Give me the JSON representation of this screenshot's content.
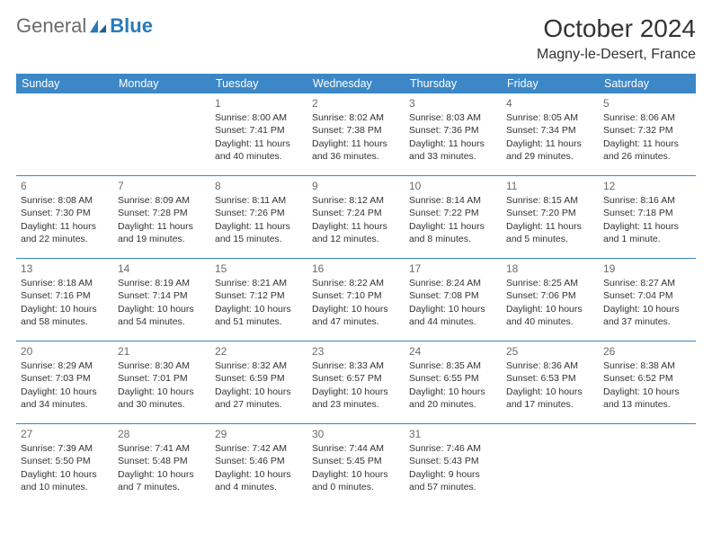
{
  "logo": {
    "text1": "General",
    "text2": "Blue"
  },
  "title": "October 2024",
  "location": "Magny-le-Desert, France",
  "colors": {
    "header_bg": "#3d87c7",
    "header_text": "#ffffff",
    "border": "#3d87c7",
    "daynum": "#6b6b6b",
    "body_text": "#333333",
    "logo_gray": "#6b6b6b",
    "logo_blue": "#2a7ab8"
  },
  "weekdays": [
    "Sunday",
    "Monday",
    "Tuesday",
    "Wednesday",
    "Thursday",
    "Friday",
    "Saturday"
  ],
  "weeks": [
    [
      null,
      null,
      {
        "n": "1",
        "sr": "Sunrise: 8:00 AM",
        "ss": "Sunset: 7:41 PM",
        "d1": "Daylight: 11 hours",
        "d2": "and 40 minutes."
      },
      {
        "n": "2",
        "sr": "Sunrise: 8:02 AM",
        "ss": "Sunset: 7:38 PM",
        "d1": "Daylight: 11 hours",
        "d2": "and 36 minutes."
      },
      {
        "n": "3",
        "sr": "Sunrise: 8:03 AM",
        "ss": "Sunset: 7:36 PM",
        "d1": "Daylight: 11 hours",
        "d2": "and 33 minutes."
      },
      {
        "n": "4",
        "sr": "Sunrise: 8:05 AM",
        "ss": "Sunset: 7:34 PM",
        "d1": "Daylight: 11 hours",
        "d2": "and 29 minutes."
      },
      {
        "n": "5",
        "sr": "Sunrise: 8:06 AM",
        "ss": "Sunset: 7:32 PM",
        "d1": "Daylight: 11 hours",
        "d2": "and 26 minutes."
      }
    ],
    [
      {
        "n": "6",
        "sr": "Sunrise: 8:08 AM",
        "ss": "Sunset: 7:30 PM",
        "d1": "Daylight: 11 hours",
        "d2": "and 22 minutes."
      },
      {
        "n": "7",
        "sr": "Sunrise: 8:09 AM",
        "ss": "Sunset: 7:28 PM",
        "d1": "Daylight: 11 hours",
        "d2": "and 19 minutes."
      },
      {
        "n": "8",
        "sr": "Sunrise: 8:11 AM",
        "ss": "Sunset: 7:26 PM",
        "d1": "Daylight: 11 hours",
        "d2": "and 15 minutes."
      },
      {
        "n": "9",
        "sr": "Sunrise: 8:12 AM",
        "ss": "Sunset: 7:24 PM",
        "d1": "Daylight: 11 hours",
        "d2": "and 12 minutes."
      },
      {
        "n": "10",
        "sr": "Sunrise: 8:14 AM",
        "ss": "Sunset: 7:22 PM",
        "d1": "Daylight: 11 hours",
        "d2": "and 8 minutes."
      },
      {
        "n": "11",
        "sr": "Sunrise: 8:15 AM",
        "ss": "Sunset: 7:20 PM",
        "d1": "Daylight: 11 hours",
        "d2": "and 5 minutes."
      },
      {
        "n": "12",
        "sr": "Sunrise: 8:16 AM",
        "ss": "Sunset: 7:18 PM",
        "d1": "Daylight: 11 hours",
        "d2": "and 1 minute."
      }
    ],
    [
      {
        "n": "13",
        "sr": "Sunrise: 8:18 AM",
        "ss": "Sunset: 7:16 PM",
        "d1": "Daylight: 10 hours",
        "d2": "and 58 minutes."
      },
      {
        "n": "14",
        "sr": "Sunrise: 8:19 AM",
        "ss": "Sunset: 7:14 PM",
        "d1": "Daylight: 10 hours",
        "d2": "and 54 minutes."
      },
      {
        "n": "15",
        "sr": "Sunrise: 8:21 AM",
        "ss": "Sunset: 7:12 PM",
        "d1": "Daylight: 10 hours",
        "d2": "and 51 minutes."
      },
      {
        "n": "16",
        "sr": "Sunrise: 8:22 AM",
        "ss": "Sunset: 7:10 PM",
        "d1": "Daylight: 10 hours",
        "d2": "and 47 minutes."
      },
      {
        "n": "17",
        "sr": "Sunrise: 8:24 AM",
        "ss": "Sunset: 7:08 PM",
        "d1": "Daylight: 10 hours",
        "d2": "and 44 minutes."
      },
      {
        "n": "18",
        "sr": "Sunrise: 8:25 AM",
        "ss": "Sunset: 7:06 PM",
        "d1": "Daylight: 10 hours",
        "d2": "and 40 minutes."
      },
      {
        "n": "19",
        "sr": "Sunrise: 8:27 AM",
        "ss": "Sunset: 7:04 PM",
        "d1": "Daylight: 10 hours",
        "d2": "and 37 minutes."
      }
    ],
    [
      {
        "n": "20",
        "sr": "Sunrise: 8:29 AM",
        "ss": "Sunset: 7:03 PM",
        "d1": "Daylight: 10 hours",
        "d2": "and 34 minutes."
      },
      {
        "n": "21",
        "sr": "Sunrise: 8:30 AM",
        "ss": "Sunset: 7:01 PM",
        "d1": "Daylight: 10 hours",
        "d2": "and 30 minutes."
      },
      {
        "n": "22",
        "sr": "Sunrise: 8:32 AM",
        "ss": "Sunset: 6:59 PM",
        "d1": "Daylight: 10 hours",
        "d2": "and 27 minutes."
      },
      {
        "n": "23",
        "sr": "Sunrise: 8:33 AM",
        "ss": "Sunset: 6:57 PM",
        "d1": "Daylight: 10 hours",
        "d2": "and 23 minutes."
      },
      {
        "n": "24",
        "sr": "Sunrise: 8:35 AM",
        "ss": "Sunset: 6:55 PM",
        "d1": "Daylight: 10 hours",
        "d2": "and 20 minutes."
      },
      {
        "n": "25",
        "sr": "Sunrise: 8:36 AM",
        "ss": "Sunset: 6:53 PM",
        "d1": "Daylight: 10 hours",
        "d2": "and 17 minutes."
      },
      {
        "n": "26",
        "sr": "Sunrise: 8:38 AM",
        "ss": "Sunset: 6:52 PM",
        "d1": "Daylight: 10 hours",
        "d2": "and 13 minutes."
      }
    ],
    [
      {
        "n": "27",
        "sr": "Sunrise: 7:39 AM",
        "ss": "Sunset: 5:50 PM",
        "d1": "Daylight: 10 hours",
        "d2": "and 10 minutes."
      },
      {
        "n": "28",
        "sr": "Sunrise: 7:41 AM",
        "ss": "Sunset: 5:48 PM",
        "d1": "Daylight: 10 hours",
        "d2": "and 7 minutes."
      },
      {
        "n": "29",
        "sr": "Sunrise: 7:42 AM",
        "ss": "Sunset: 5:46 PM",
        "d1": "Daylight: 10 hours",
        "d2": "and 4 minutes."
      },
      {
        "n": "30",
        "sr": "Sunrise: 7:44 AM",
        "ss": "Sunset: 5:45 PM",
        "d1": "Daylight: 10 hours",
        "d2": "and 0 minutes."
      },
      {
        "n": "31",
        "sr": "Sunrise: 7:46 AM",
        "ss": "Sunset: 5:43 PM",
        "d1": "Daylight: 9 hours",
        "d2": "and 57 minutes."
      },
      null,
      null
    ]
  ]
}
